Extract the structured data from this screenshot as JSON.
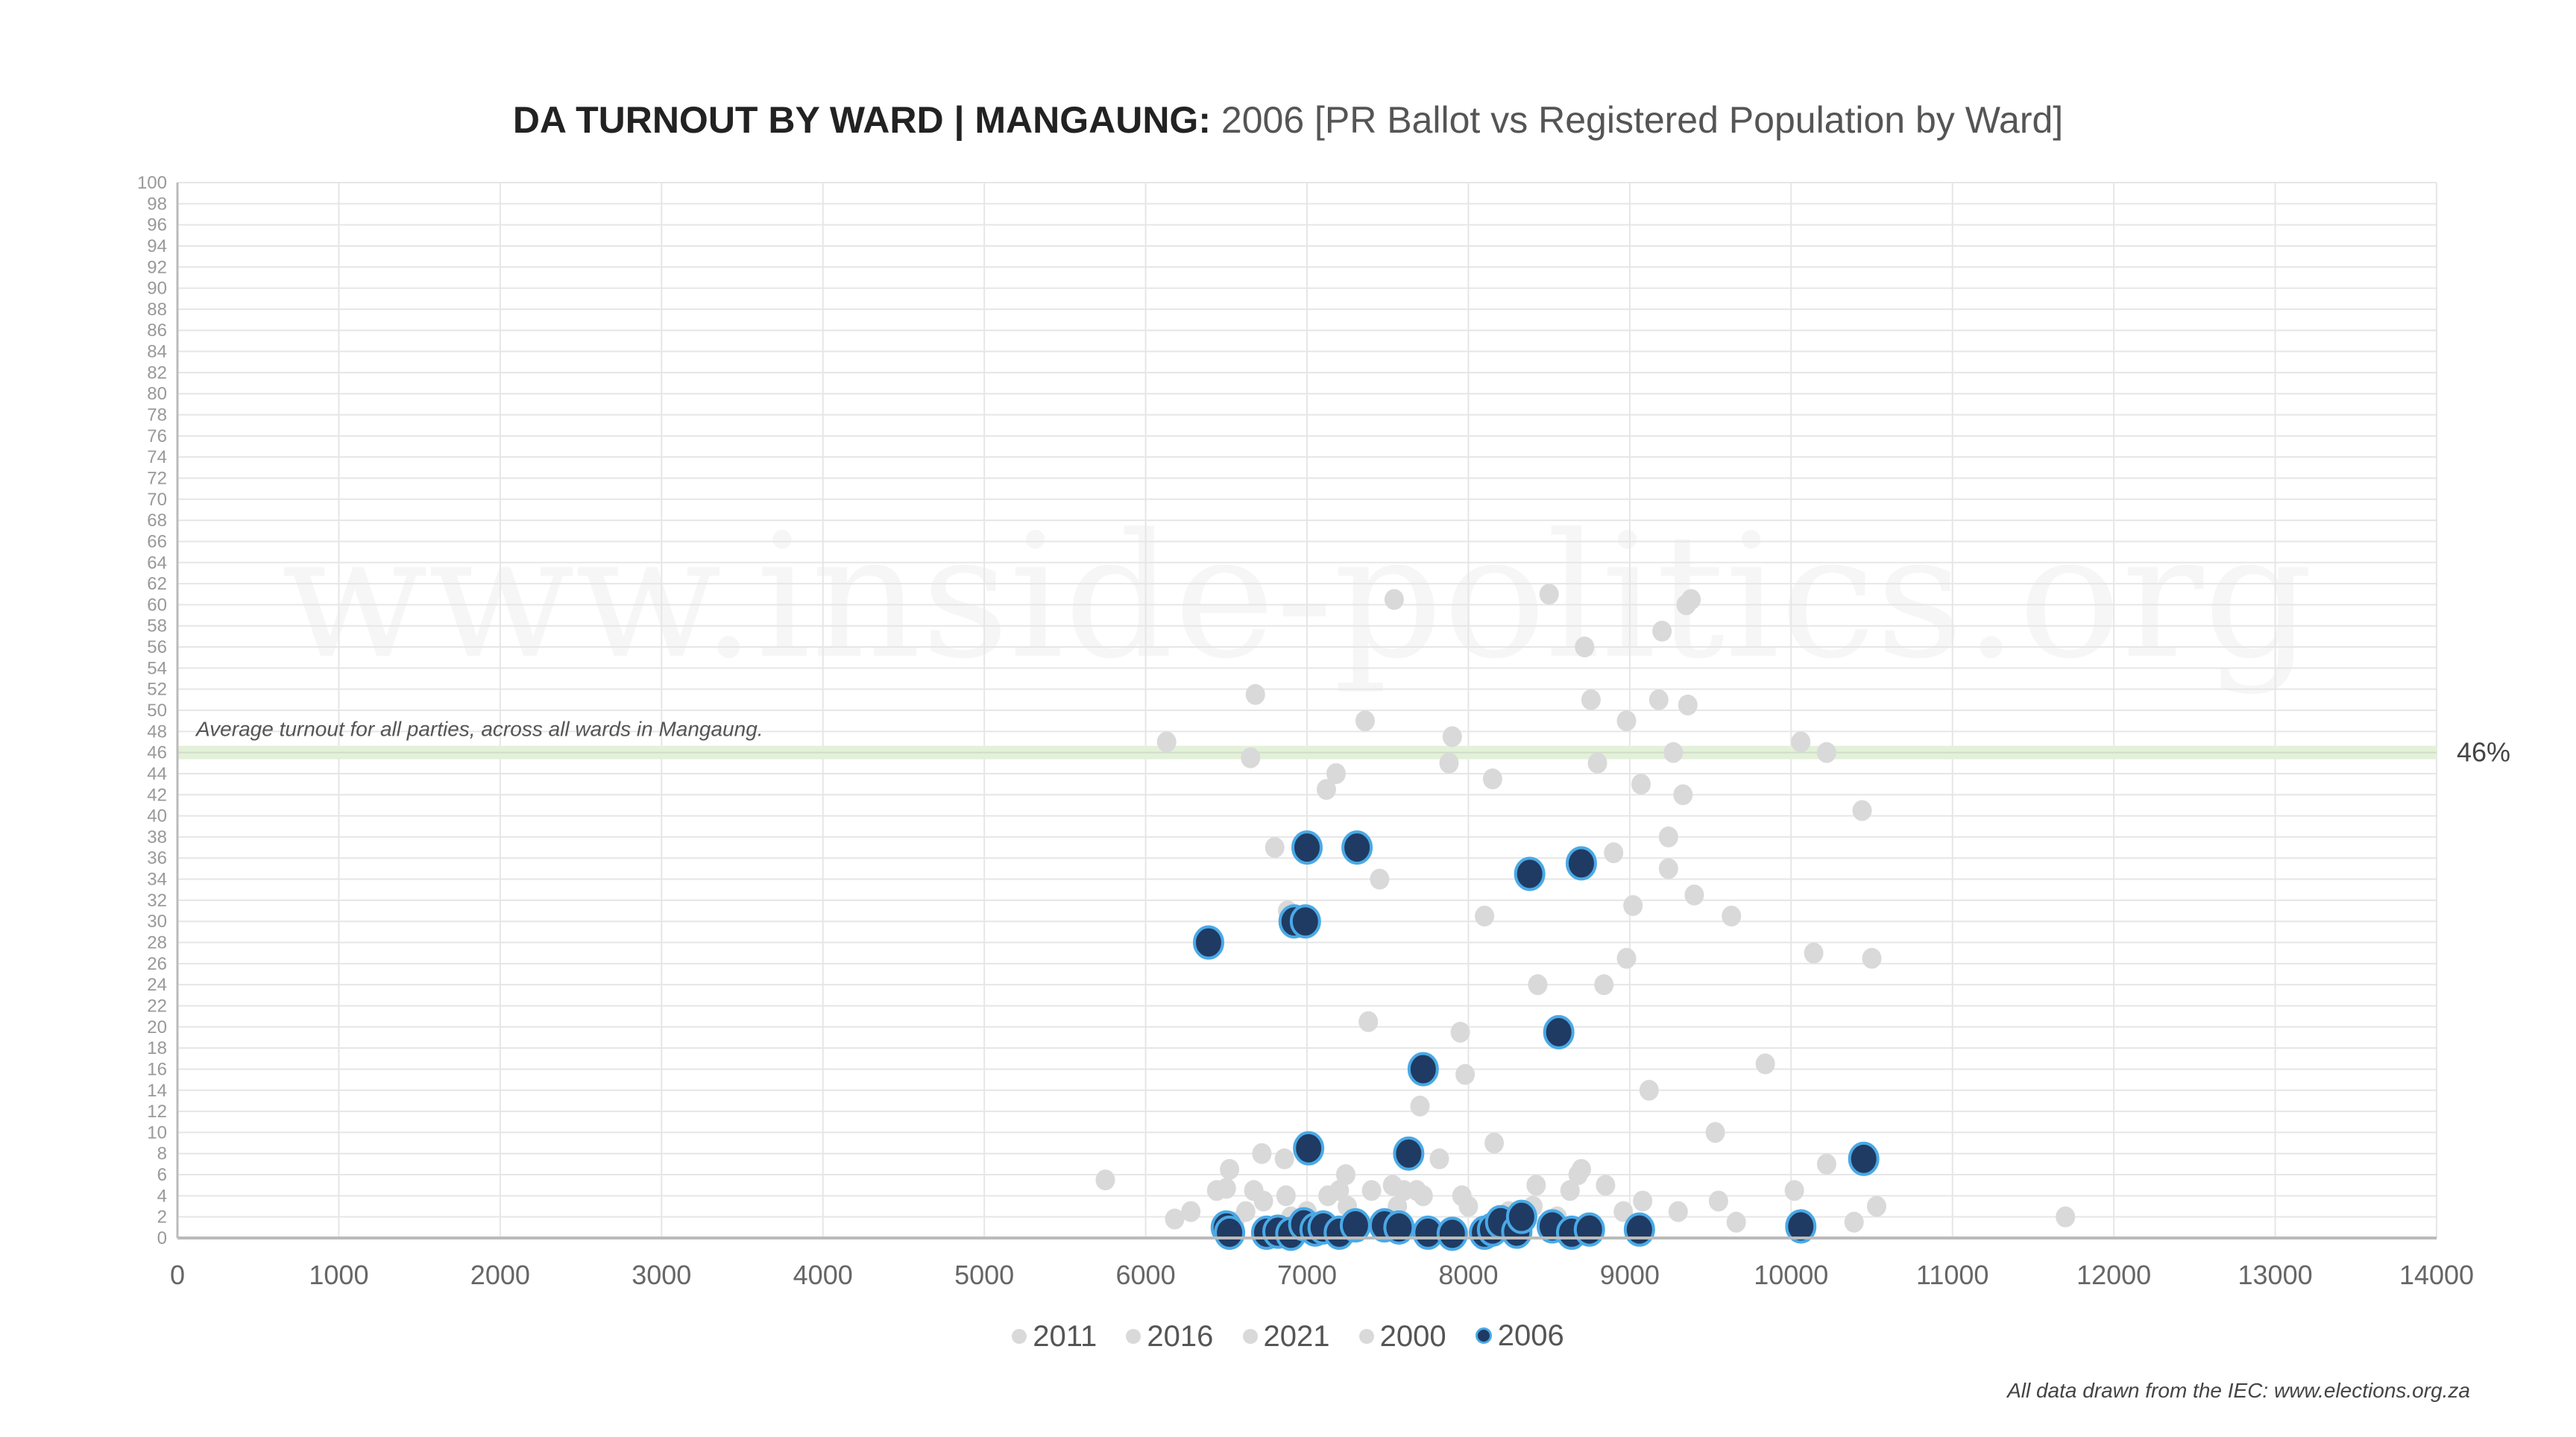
{
  "title": {
    "bold": "DA TURNOUT BY WARD | MANGAUNG:",
    "rest": "2006 [PR Ballot vs Registered Population by Ward]"
  },
  "watermark": "www.inside-politics.org",
  "footnote": "All data drawn from the IEC: www.elections.org.za",
  "colors": {
    "highlight_fill": "#1f3b63",
    "highlight_stroke": "#4aa9e6",
    "other_years": "#d9d9d9",
    "average_band": "#e3f1d9"
  },
  "chart_data": {
    "type": "scatter",
    "xlim": [
      0,
      14000
    ],
    "ylim": [
      0,
      100
    ],
    "xticks": [
      "0",
      "1000",
      "2000",
      "3000",
      "4000",
      "5000",
      "6000",
      "7000",
      "8000",
      "9000",
      "10000",
      "11000",
      "12000",
      "13000",
      "14000"
    ],
    "yticks_step": 2,
    "grid": true,
    "legend_position": "bottom",
    "legend": [
      "2011",
      "2016",
      "2021",
      "2000",
      "2006"
    ],
    "average_line": {
      "value": 46,
      "label": "46%",
      "annotation": "Average turnout for all parties, across all wards in Mangaung."
    },
    "highlight_series": {
      "name": "2006",
      "points": [
        [
          7000,
          37
        ],
        [
          7310,
          37
        ],
        [
          8380,
          34.5
        ],
        [
          8700,
          35.5
        ],
        [
          6390,
          28
        ],
        [
          6920,
          30
        ],
        [
          6990,
          30
        ],
        [
          7720,
          16
        ],
        [
          8560,
          19.5
        ],
        [
          7010,
          8.5
        ],
        [
          7630,
          8
        ],
        [
          10450,
          7.5
        ],
        [
          6500,
          1
        ],
        [
          6520,
          0.5
        ],
        [
          6750,
          0.5
        ],
        [
          6820,
          0.6
        ],
        [
          6900,
          0.4
        ],
        [
          6980,
          1.3
        ],
        [
          7050,
          0.8
        ],
        [
          7100,
          1
        ],
        [
          7200,
          0.5
        ],
        [
          7300,
          1.2
        ],
        [
          7480,
          1.2
        ],
        [
          7570,
          1
        ],
        [
          7750,
          0.5
        ],
        [
          7900,
          0.4
        ],
        [
          8100,
          0.5
        ],
        [
          8150,
          0.8
        ],
        [
          8200,
          1.5
        ],
        [
          8300,
          0.6
        ],
        [
          8330,
          2
        ],
        [
          8520,
          1.1
        ],
        [
          8640,
          0.5
        ],
        [
          8750,
          0.8
        ],
        [
          9060,
          0.8
        ],
        [
          10060,
          1.1
        ]
      ]
    },
    "other_years_points": [
      [
        5750,
        5.5
      ],
      [
        6130,
        47
      ],
      [
        6180,
        1.8
      ],
      [
        6280,
        2.5
      ],
      [
        6440,
        4.5
      ],
      [
        6500,
        4.7
      ],
      [
        6520,
        6.5
      ],
      [
        6550,
        1.5
      ],
      [
        6620,
        2.5
      ],
      [
        6650,
        45.5
      ],
      [
        6670,
        4.5
      ],
      [
        6680,
        51.5
      ],
      [
        6720,
        8
      ],
      [
        6730,
        3.5
      ],
      [
        6800,
        37
      ],
      [
        6860,
        7.5
      ],
      [
        6870,
        4
      ],
      [
        6880,
        31
      ],
      [
        6900,
        2
      ],
      [
        7000,
        2.5
      ],
      [
        7120,
        42.5
      ],
      [
        7130,
        4
      ],
      [
        7180,
        44
      ],
      [
        7200,
        4.5
      ],
      [
        7240,
        6
      ],
      [
        7250,
        3
      ],
      [
        7320,
        36.5
      ],
      [
        7360,
        49
      ],
      [
        7380,
        20.5
      ],
      [
        7400,
        4.5
      ],
      [
        7450,
        34
      ],
      [
        7530,
        5
      ],
      [
        7540,
        60.5
      ],
      [
        7560,
        3
      ],
      [
        7600,
        4.5
      ],
      [
        7680,
        4.5
      ],
      [
        7700,
        12.5
      ],
      [
        7720,
        4
      ],
      [
        7820,
        7.5
      ],
      [
        7880,
        45
      ],
      [
        7900,
        47.5
      ],
      [
        7950,
        19.5
      ],
      [
        7960,
        4
      ],
      [
        7980,
        15.5
      ],
      [
        8000,
        3
      ],
      [
        8100,
        30.5
      ],
      [
        8150,
        43.5
      ],
      [
        8160,
        9
      ],
      [
        8250,
        2.5
      ],
      [
        8400,
        3
      ],
      [
        8420,
        5
      ],
      [
        8430,
        24
      ],
      [
        8500,
        61
      ],
      [
        8550,
        2
      ],
      [
        8630,
        4.5
      ],
      [
        8680,
        6
      ],
      [
        8700,
        6.5
      ],
      [
        8720,
        56
      ],
      [
        8760,
        51
      ],
      [
        8800,
        45
      ],
      [
        8840,
        24
      ],
      [
        8850,
        5
      ],
      [
        8900,
        36.5
      ],
      [
        8960,
        2.5
      ],
      [
        8980,
        26.5
      ],
      [
        8980,
        49
      ],
      [
        9020,
        31.5
      ],
      [
        9070,
        43
      ],
      [
        9080,
        3.5
      ],
      [
        9120,
        14
      ],
      [
        9180,
        51
      ],
      [
        9200,
        57.5
      ],
      [
        9240,
        38
      ],
      [
        9240,
        35
      ],
      [
        9270,
        46
      ],
      [
        9300,
        2.5
      ],
      [
        9330,
        42
      ],
      [
        9350,
        60
      ],
      [
        9360,
        50.5
      ],
      [
        9380,
        60.5
      ],
      [
        9400,
        32.5
      ],
      [
        9530,
        10
      ],
      [
        9550,
        3.5
      ],
      [
        9630,
        30.5
      ],
      [
        9660,
        1.5
      ],
      [
        9840,
        16.5
      ],
      [
        10020,
        4.5
      ],
      [
        10060,
        47
      ],
      [
        10140,
        27
      ],
      [
        10220,
        7
      ],
      [
        10220,
        46
      ],
      [
        10390,
        1.5
      ],
      [
        10440,
        40.5
      ],
      [
        10500,
        26.5
      ],
      [
        10530,
        3
      ],
      [
        11700,
        2
      ]
    ]
  }
}
